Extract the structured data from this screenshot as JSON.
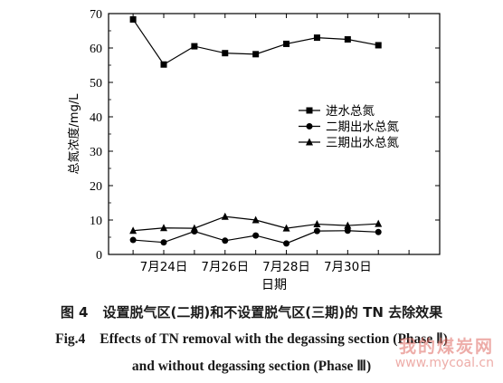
{
  "chart_data": {
    "type": "line",
    "title": "",
    "xlabel": "日期",
    "ylabel": "总氮浓度/mg/L",
    "xticks": [
      "7月24日",
      "7月26日",
      "7月28日",
      "7月30日"
    ],
    "x": [
      1,
      2,
      3,
      4,
      5,
      6,
      7,
      8,
      9,
      10
    ],
    "xlim": [
      0.2,
      11
    ],
    "ylim": [
      0,
      70
    ],
    "yticks": [
      0,
      10,
      20,
      30,
      40,
      50,
      60,
      70
    ],
    "grid": false,
    "legend_position": "right-middle",
    "series": [
      {
        "name": "进水总氮",
        "marker": "square",
        "values": [
          68.3,
          55.2,
          60.5,
          58.5,
          58.2,
          61.2,
          63.0,
          62.5,
          60.8,
          null
        ]
      },
      {
        "name": "二期出水总氮",
        "marker": "circle",
        "values": [
          4.2,
          3.5,
          6.7,
          4.0,
          5.5,
          3.2,
          6.8,
          6.9,
          6.5,
          null
        ]
      },
      {
        "name": "三期出水总氮",
        "marker": "triangle",
        "values": [
          6.9,
          7.7,
          7.6,
          11.0,
          10.0,
          7.6,
          8.8,
          8.4,
          8.9,
          null
        ]
      }
    ]
  },
  "caption": {
    "cn_label": "图 4",
    "cn_text": "设置脱气区(二期)和不设置脱气区(三期)的 TN 去除效果",
    "en_label": "Fig.4",
    "en_line1": "Effects of TN removal with the degassing section (Phase Ⅱ)",
    "en_line2": "and without degassing section (Phase Ⅲ)"
  },
  "watermark": {
    "text": "我的煤炭网",
    "url": "www.mycoal.cn"
  }
}
